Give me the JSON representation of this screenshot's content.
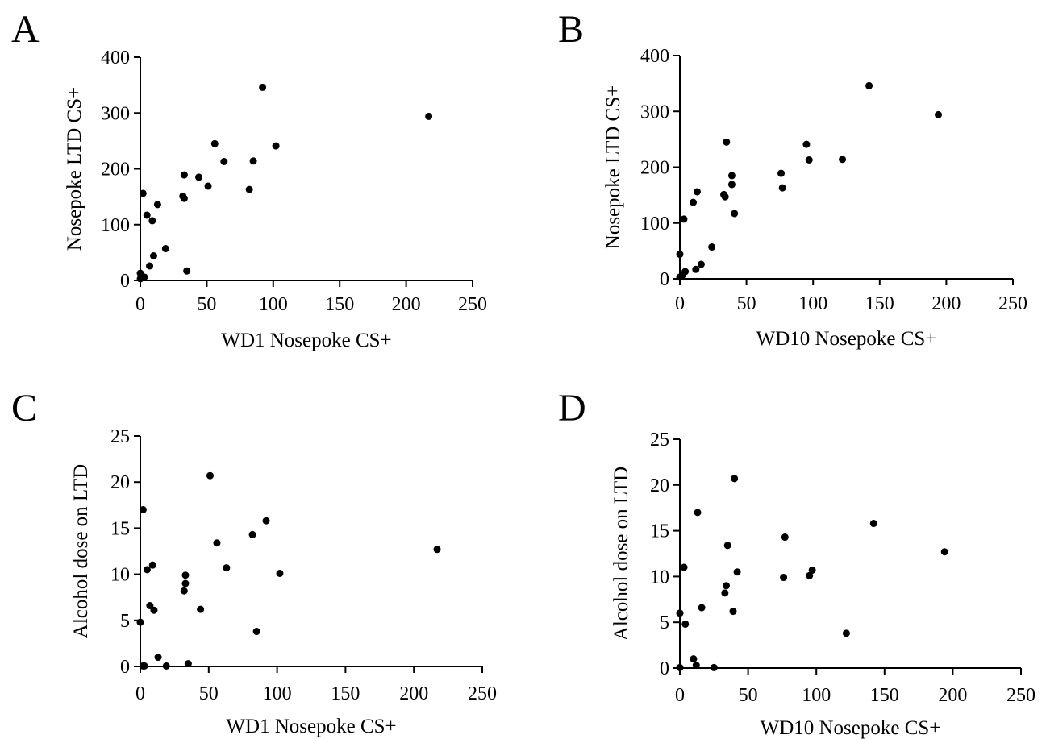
{
  "chart_data": [
    {
      "type": "scatter",
      "panel": "A",
      "xlabel": "WD1 Nosepoke CS+",
      "ylabel": "Nosepoke LTD CS+",
      "xlim": [
        0,
        250
      ],
      "ylim": [
        0,
        400
      ],
      "xticks": [
        0,
        50,
        100,
        150,
        200,
        250
      ],
      "yticks": [
        0,
        100,
        200,
        300,
        400
      ],
      "points": [
        {
          "x": 0,
          "y": 13
        },
        {
          "x": 0,
          "y": 3
        },
        {
          "x": 2,
          "y": 156
        },
        {
          "x": 3,
          "y": 6
        },
        {
          "x": 5,
          "y": 117
        },
        {
          "x": 7,
          "y": 26
        },
        {
          "x": 9,
          "y": 107
        },
        {
          "x": 10,
          "y": 44
        },
        {
          "x": 13,
          "y": 136
        },
        {
          "x": 19,
          "y": 57
        },
        {
          "x": 32,
          "y": 151
        },
        {
          "x": 33,
          "y": 189
        },
        {
          "x": 33,
          "y": 147
        },
        {
          "x": 35,
          "y": 17
        },
        {
          "x": 44,
          "y": 185
        },
        {
          "x": 51,
          "y": 169
        },
        {
          "x": 56,
          "y": 245
        },
        {
          "x": 63,
          "y": 213
        },
        {
          "x": 82,
          "y": 163
        },
        {
          "x": 85,
          "y": 214
        },
        {
          "x": 92,
          "y": 346
        },
        {
          "x": 102,
          "y": 241
        },
        {
          "x": 217,
          "y": 294
        }
      ]
    },
    {
      "type": "scatter",
      "panel": "B",
      "xlabel": "WD10 Nosepoke CS+",
      "ylabel": "Nosepoke LTD CS+",
      "xlim": [
        0,
        250
      ],
      "ylim": [
        0,
        400
      ],
      "xticks": [
        0,
        50,
        100,
        150,
        200,
        250
      ],
      "yticks": [
        0,
        100,
        200,
        300,
        400
      ],
      "points": [
        {
          "x": 0,
          "y": 3
        },
        {
          "x": 0,
          "y": 44
        },
        {
          "x": 2,
          "y": 7
        },
        {
          "x": 3,
          "y": 107
        },
        {
          "x": 4,
          "y": 13
        },
        {
          "x": 10,
          "y": 137
        },
        {
          "x": 12,
          "y": 17
        },
        {
          "x": 13,
          "y": 156
        },
        {
          "x": 16,
          "y": 26
        },
        {
          "x": 24,
          "y": 57
        },
        {
          "x": 33,
          "y": 151
        },
        {
          "x": 34,
          "y": 147
        },
        {
          "x": 35,
          "y": 245
        },
        {
          "x": 39,
          "y": 185
        },
        {
          "x": 39,
          "y": 169
        },
        {
          "x": 41,
          "y": 117
        },
        {
          "x": 76,
          "y": 189
        },
        {
          "x": 77,
          "y": 163
        },
        {
          "x": 95,
          "y": 241
        },
        {
          "x": 97,
          "y": 213
        },
        {
          "x": 122,
          "y": 214
        },
        {
          "x": 142,
          "y": 346
        },
        {
          "x": 194,
          "y": 294
        }
      ]
    },
    {
      "type": "scatter",
      "panel": "C",
      "xlabel": "WD1 Nosepoke CS+",
      "ylabel": "Alcohol dose on LTD",
      "xlim": [
        0,
        250
      ],
      "ylim": [
        0,
        25
      ],
      "xticks": [
        0,
        50,
        100,
        150,
        200,
        250
      ],
      "yticks": [
        0,
        5,
        10,
        15,
        20,
        25
      ],
      "points": [
        {
          "x": 0,
          "y": 4.8
        },
        {
          "x": 2,
          "y": 17.0
        },
        {
          "x": 2,
          "y": 0.05
        },
        {
          "x": 3,
          "y": 0.05
        },
        {
          "x": 5,
          "y": 10.5
        },
        {
          "x": 7,
          "y": 6.6
        },
        {
          "x": 9,
          "y": 11.0
        },
        {
          "x": 10,
          "y": 6.1
        },
        {
          "x": 13,
          "y": 1.0
        },
        {
          "x": 19,
          "y": 0.05
        },
        {
          "x": 32,
          "y": 8.2
        },
        {
          "x": 33,
          "y": 9.0
        },
        {
          "x": 33,
          "y": 9.9
        },
        {
          "x": 35,
          "y": 0.3
        },
        {
          "x": 44,
          "y": 6.2
        },
        {
          "x": 51,
          "y": 20.7
        },
        {
          "x": 56,
          "y": 13.4
        },
        {
          "x": 63,
          "y": 10.7
        },
        {
          "x": 82,
          "y": 14.3
        },
        {
          "x": 85,
          "y": 3.8
        },
        {
          "x": 92,
          "y": 15.8
        },
        {
          "x": 102,
          "y": 10.1
        },
        {
          "x": 217,
          "y": 12.7
        }
      ]
    },
    {
      "type": "scatter",
      "panel": "D",
      "xlabel": "WD10 Nosepoke CS+",
      "ylabel": "Alcohol dose on LTD",
      "xlim": [
        0,
        250
      ],
      "ylim": [
        0,
        25
      ],
      "xticks": [
        0,
        50,
        100,
        150,
        200,
        250
      ],
      "yticks": [
        0,
        5,
        10,
        15,
        20,
        25
      ],
      "points": [
        {
          "x": 0,
          "y": 0.05
        },
        {
          "x": 0,
          "y": 6.0
        },
        {
          "x": 3,
          "y": 11.0
        },
        {
          "x": 4,
          "y": 4.8
        },
        {
          "x": 10,
          "y": 1.0
        },
        {
          "x": 12,
          "y": 0.3
        },
        {
          "x": 13,
          "y": 17.0
        },
        {
          "x": 16,
          "y": 6.6
        },
        {
          "x": 25,
          "y": 0.05
        },
        {
          "x": 33,
          "y": 8.2
        },
        {
          "x": 34,
          "y": 9.0
        },
        {
          "x": 35,
          "y": 13.4
        },
        {
          "x": 39,
          "y": 6.2
        },
        {
          "x": 40,
          "y": 20.7
        },
        {
          "x": 42,
          "y": 10.5
        },
        {
          "x": 76,
          "y": 9.9
        },
        {
          "x": 77,
          "y": 14.3
        },
        {
          "x": 95,
          "y": 10.1
        },
        {
          "x": 97,
          "y": 10.7
        },
        {
          "x": 122,
          "y": 3.8
        },
        {
          "x": 142,
          "y": 15.8
        },
        {
          "x": 194,
          "y": 12.7
        }
      ]
    }
  ]
}
